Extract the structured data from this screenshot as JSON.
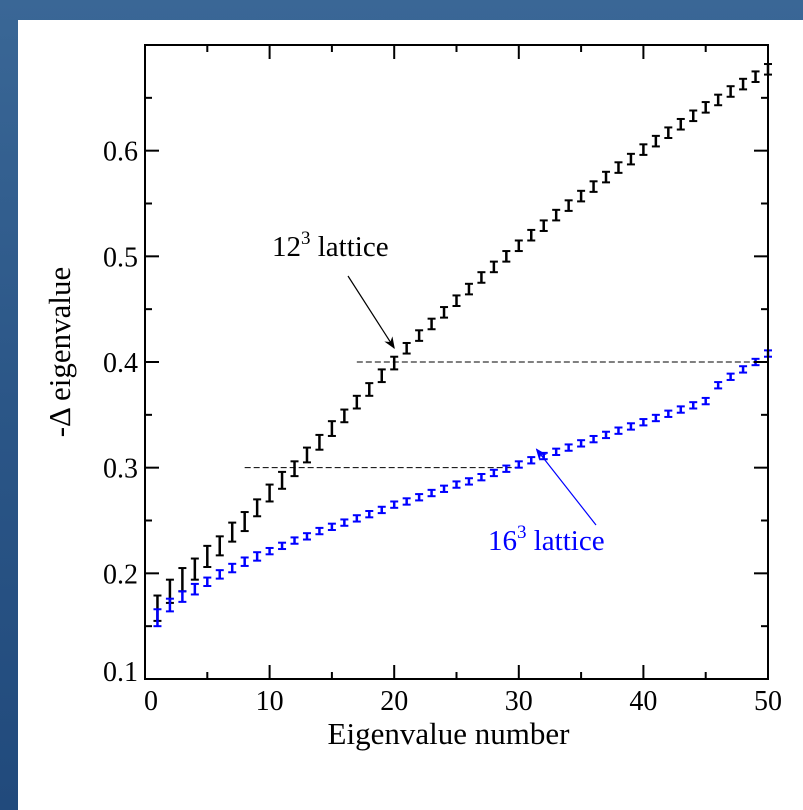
{
  "chart_data": {
    "type": "scatter",
    "xlabel": "Eigenvalue number",
    "ylabel": "-Δ eigenvalue",
    "xlim": [
      0,
      50
    ],
    "ylim": [
      0.1,
      0.7
    ],
    "xticks": [
      "0",
      "10",
      "20",
      "30",
      "40",
      "50"
    ],
    "yticks": [
      "0.1",
      "0.2",
      "0.3",
      "0.4",
      "0.5",
      "0.6"
    ],
    "grid": false,
    "error_bars": true,
    "series": [
      {
        "name": "12^3 lattice",
        "color": "#000000",
        "x": [
          1,
          2,
          3,
          4,
          5,
          6,
          7,
          8,
          9,
          10,
          11,
          12,
          13,
          14,
          15,
          16,
          17,
          18,
          19,
          20,
          21,
          22,
          23,
          24,
          25,
          26,
          27,
          28,
          29,
          30,
          31,
          32,
          33,
          34,
          35,
          36,
          37,
          38,
          39,
          40,
          41,
          42,
          43,
          44,
          45,
          46,
          47,
          48,
          49,
          50
        ],
        "y": [
          0.167,
          0.183,
          0.194,
          0.204,
          0.216,
          0.226,
          0.239,
          0.249,
          0.262,
          0.276,
          0.288,
          0.299,
          0.312,
          0.324,
          0.337,
          0.349,
          0.362,
          0.374,
          0.387,
          0.399,
          0.413,
          0.425,
          0.436,
          0.447,
          0.458,
          0.469,
          0.48,
          0.49,
          0.5,
          0.51,
          0.52,
          0.529,
          0.539,
          0.548,
          0.557,
          0.566,
          0.575,
          0.584,
          0.592,
          0.601,
          0.609,
          0.617,
          0.625,
          0.633,
          0.641,
          0.648,
          0.656,
          0.663,
          0.67,
          0.677
        ],
        "yerr": [
          0.012,
          0.011,
          0.011,
          0.01,
          0.01,
          0.009,
          0.009,
          0.009,
          0.008,
          0.008,
          0.008,
          0.007,
          0.007,
          0.007,
          0.007,
          0.006,
          0.006,
          0.006,
          0.006,
          0.006,
          0.005,
          0.005,
          0.005,
          0.005,
          0.005,
          0.005,
          0.005,
          0.005,
          0.005,
          0.005,
          0.005,
          0.005,
          0.005,
          0.005,
          0.005,
          0.005,
          0.005,
          0.005,
          0.005,
          0.005,
          0.005,
          0.005,
          0.005,
          0.005,
          0.005,
          0.005,
          0.005,
          0.005,
          0.005,
          0.005
        ]
      },
      {
        "name": "16^3 lattice",
        "color": "#0000ff",
        "x": [
          1,
          2,
          3,
          4,
          5,
          6,
          7,
          8,
          9,
          10,
          11,
          12,
          13,
          14,
          15,
          16,
          17,
          18,
          19,
          20,
          21,
          22,
          23,
          24,
          25,
          26,
          27,
          28,
          29,
          30,
          31,
          32,
          33,
          34,
          35,
          36,
          37,
          38,
          39,
          40,
          41,
          42,
          43,
          44,
          45,
          46,
          47,
          48,
          49,
          50
        ],
        "y": [
          0.158,
          0.17,
          0.178,
          0.185,
          0.192,
          0.199,
          0.205,
          0.211,
          0.216,
          0.221,
          0.226,
          0.231,
          0.235,
          0.24,
          0.244,
          0.248,
          0.252,
          0.256,
          0.26,
          0.265,
          0.268,
          0.272,
          0.276,
          0.28,
          0.284,
          0.287,
          0.291,
          0.295,
          0.299,
          0.303,
          0.307,
          0.311,
          0.315,
          0.319,
          0.323,
          0.327,
          0.331,
          0.335,
          0.339,
          0.343,
          0.347,
          0.351,
          0.355,
          0.359,
          0.363,
          0.378,
          0.386,
          0.393,
          0.4,
          0.408
        ],
        "yerr": [
          0.008,
          0.006,
          0.005,
          0.005,
          0.004,
          0.004,
          0.004,
          0.004,
          0.004,
          0.003,
          0.003,
          0.003,
          0.003,
          0.003,
          0.003,
          0.003,
          0.003,
          0.003,
          0.003,
          0.003,
          0.003,
          0.003,
          0.003,
          0.003,
          0.003,
          0.003,
          0.003,
          0.003,
          0.003,
          0.003,
          0.003,
          0.003,
          0.003,
          0.003,
          0.003,
          0.003,
          0.003,
          0.003,
          0.003,
          0.003,
          0.003,
          0.003,
          0.003,
          0.003,
          0.003,
          0.003,
          0.003,
          0.003,
          0.003,
          0.003
        ]
      }
    ],
    "reference_lines": [
      {
        "y": 0.3,
        "x_from": 8,
        "x_to": 30,
        "style": "dashed"
      },
      {
        "y": 0.4,
        "x_from": 17,
        "x_to": 50,
        "style": "dashed"
      }
    ],
    "annotations": [
      {
        "base": "12",
        "sup": "3",
        "text": " lattice",
        "color": "#000000",
        "arrow_to": {
          "x": 20,
          "y": 0.4
        }
      },
      {
        "base": "16",
        "sup": "3",
        "text": " lattice",
        "color": "#0000ff",
        "arrow_to": {
          "x": 31.5,
          "y": 0.325
        }
      }
    ]
  }
}
